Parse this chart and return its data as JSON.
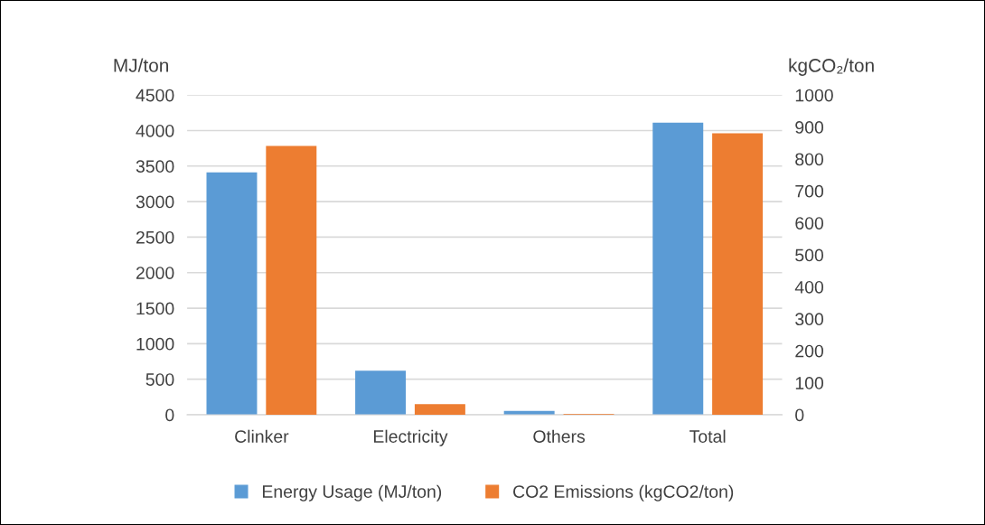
{
  "chart_data": {
    "type": "bar",
    "ylabel": "MJ/ton",
    "y2label": "kgCO₂/ton",
    "categories": [
      "Clinker",
      "Electricity",
      "Others",
      "Total"
    ],
    "series": [
      {
        "name": "Energy Usage (MJ/ton)",
        "color": "#5b9bd5",
        "values": [
          3410,
          620,
          55,
          4110
        ]
      },
      {
        "name": "CO2 Emissions (kgCO2/ton)",
        "color": "#ed7d31",
        "values": [
          841,
          33,
          2,
          880
        ],
        "axis": "y2"
      }
    ],
    "ylim": [
      0,
      4500
    ],
    "yticks": [
      0,
      500,
      1000,
      1500,
      2000,
      2500,
      3000,
      3500,
      4000,
      4500
    ],
    "y2lim": [
      0,
      1000
    ],
    "y2ticks": [
      0,
      100,
      200,
      300,
      400,
      500,
      600,
      700,
      800,
      900,
      1000
    ],
    "grid": "y",
    "legend": "bottom"
  }
}
